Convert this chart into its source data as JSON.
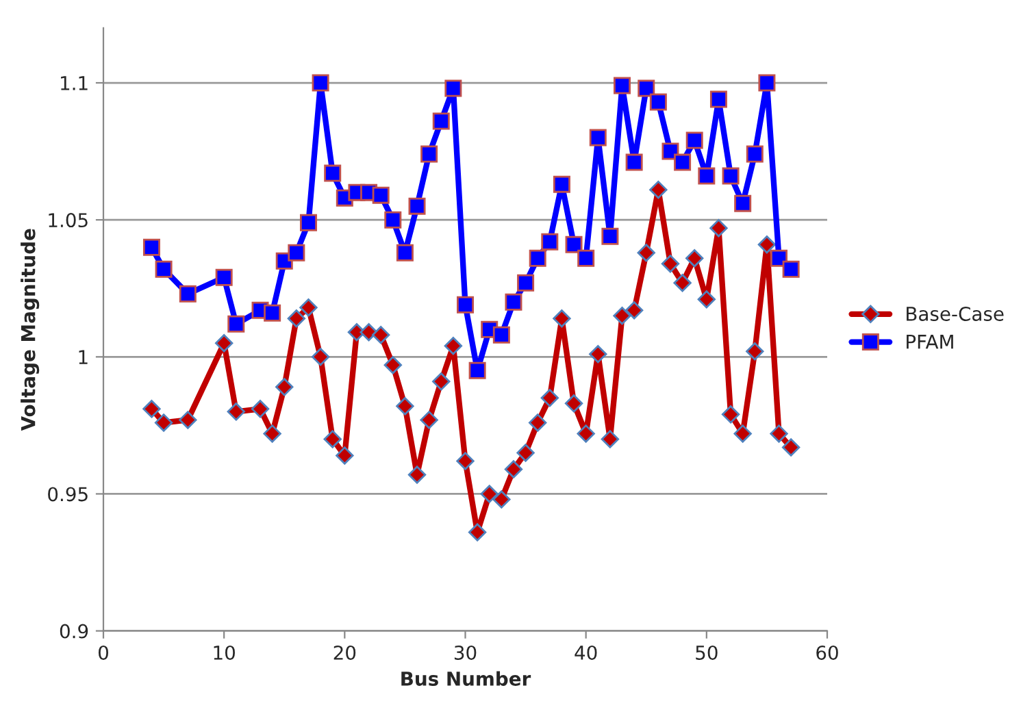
{
  "chart_data": {
    "type": "line",
    "xlabel": "Bus Number",
    "ylabel": "Voltage Magnitude",
    "x": [
      4,
      5,
      7,
      10,
      11,
      13,
      14,
      15,
      16,
      17,
      18,
      19,
      20,
      21,
      22,
      23,
      24,
      25,
      26,
      27,
      28,
      29,
      30,
      31,
      32,
      33,
      34,
      35,
      36,
      37,
      38,
      39,
      40,
      41,
      42,
      43,
      44,
      45,
      46,
      47,
      48,
      49,
      50,
      51,
      52,
      53,
      54,
      55,
      56,
      57
    ],
    "series": [
      {
        "name": "Base-Case",
        "color": "#c00000",
        "marker": "diamond",
        "values": [
          0.981,
          0.976,
          0.977,
          1.005,
          0.98,
          0.981,
          0.972,
          0.989,
          1.014,
          1.018,
          1.0,
          0.97,
          0.964,
          1.009,
          1.009,
          1.008,
          0.997,
          0.982,
          0.957,
          0.977,
          0.991,
          1.004,
          0.962,
          0.936,
          0.95,
          0.948,
          0.959,
          0.965,
          0.976,
          0.985,
          1.014,
          0.983,
          0.972,
          1.001,
          0.97,
          1.015,
          1.017,
          1.038,
          1.061,
          1.034,
          1.027,
          1.036,
          1.021,
          1.047,
          0.979,
          0.972,
          1.002,
          1.041,
          0.972,
          0.967
        ]
      },
      {
        "name": "PFAM",
        "color": "#0000ff",
        "marker": "square",
        "values": [
          1.04,
          1.032,
          1.023,
          1.029,
          1.012,
          1.017,
          1.016,
          1.035,
          1.038,
          1.049,
          1.1,
          1.067,
          1.058,
          1.06,
          1.06,
          1.059,
          1.05,
          1.038,
          1.055,
          1.074,
          1.086,
          1.098,
          1.019,
          0.995,
          1.01,
          1.008,
          1.02,
          1.027,
          1.036,
          1.042,
          1.063,
          1.041,
          1.036,
          1.08,
          1.044,
          1.099,
          1.071,
          1.098,
          1.093,
          1.075,
          1.071,
          1.079,
          1.066,
          1.094,
          1.066,
          1.056,
          1.074,
          1.1,
          1.036,
          1.032
        ]
      }
    ],
    "xlim": [
      0,
      60
    ],
    "xticks": [
      0,
      10,
      20,
      30,
      40,
      50,
      60
    ],
    "ylim": [
      0.9,
      1.12
    ],
    "yticks": [
      0.9,
      0.95,
      1,
      1.05,
      1.1
    ],
    "grid": "y",
    "legend": "right",
    "line_style": "solid"
  }
}
